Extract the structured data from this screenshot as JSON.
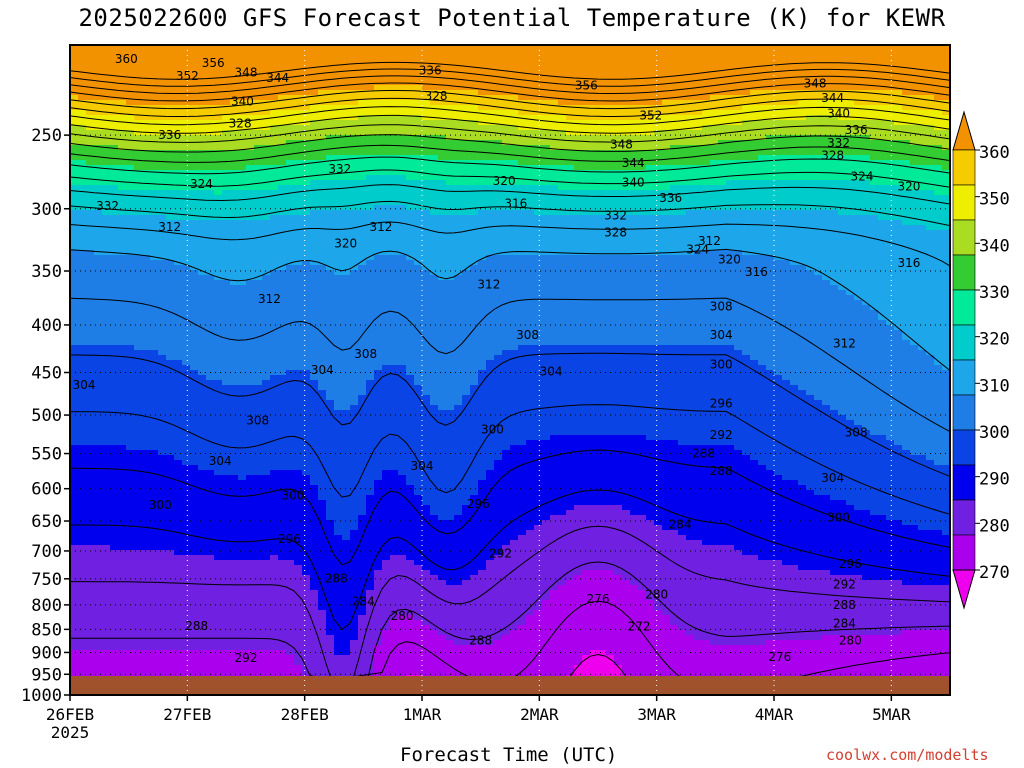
{
  "chart_data": {
    "type": "heatmap",
    "title": "2025022600 GFS Forecast Potential Temperature (K) for KEWR",
    "xlabel": "Forecast Time (UTC)",
    "ylabel": "",
    "credit": "coolwx.com/modelts",
    "x_ticks": [
      "26FEB",
      "27FEB",
      "28FEB",
      "1MAR",
      "2MAR",
      "3MAR",
      "4MAR",
      "5MAR"
    ],
    "x_year": "2025",
    "xlim_days": [
      0,
      7.5
    ],
    "y_ticks": [
      250,
      300,
      350,
      400,
      450,
      500,
      550,
      600,
      650,
      700,
      750,
      800,
      850,
      900,
      950,
      1000
    ],
    "ylim": [
      200,
      1000
    ],
    "y_scale": "log",
    "grid": true,
    "colorbar": {
      "values": [
        270,
        280,
        290,
        300,
        310,
        320,
        330,
        340,
        350,
        360
      ],
      "colors": [
        "#ee00ee",
        "#aa00ee",
        "#7020e0",
        "#0000ee",
        "#0a44e4",
        "#1e7ee6",
        "#1ea6ea",
        "#00cccc",
        "#00ea99",
        "#33cc33",
        "#aadd22",
        "#eeee00",
        "#f5cc00",
        "#f39200"
      ],
      "placement": "right"
    },
    "surface_color": "#a0522d",
    "contour_interval_k": 4,
    "contour_labels": [
      {
        "v": 360,
        "d": 0.48,
        "p": 207
      },
      {
        "v": 356,
        "d": 1.22,
        "p": 209
      },
      {
        "v": 352,
        "d": 1.0,
        "p": 216
      },
      {
        "v": 348,
        "d": 1.5,
        "p": 214
      },
      {
        "v": 344,
        "d": 1.77,
        "p": 217
      },
      {
        "v": 340,
        "d": 1.47,
        "p": 230
      },
      {
        "v": 336,
        "d": 0.85,
        "p": 250
      },
      {
        "v": 328,
        "d": 1.45,
        "p": 243
      },
      {
        "v": 332,
        "d": 2.3,
        "p": 272
      },
      {
        "v": 324,
        "d": 1.12,
        "p": 282
      },
      {
        "v": 332,
        "d": 0.32,
        "p": 298
      },
      {
        "v": 312,
        "d": 0.85,
        "p": 314
      },
      {
        "v": 320,
        "d": 2.35,
        "p": 327
      },
      {
        "v": 312,
        "d": 2.65,
        "p": 314
      },
      {
        "v": 312,
        "d": 1.7,
        "p": 375
      },
      {
        "v": 304,
        "d": 0.12,
        "p": 464
      },
      {
        "v": 304,
        "d": 2.15,
        "p": 447
      },
      {
        "v": 308,
        "d": 2.52,
        "p": 430
      },
      {
        "v": 308,
        "d": 1.6,
        "p": 507
      },
      {
        "v": 304,
        "d": 1.28,
        "p": 560
      },
      {
        "v": 300,
        "d": 0.77,
        "p": 625
      },
      {
        "v": 300,
        "d": 1.9,
        "p": 610
      },
      {
        "v": 304,
        "d": 3.0,
        "p": 567
      },
      {
        "v": 296,
        "d": 1.87,
        "p": 680
      },
      {
        "v": 288,
        "d": 2.27,
        "p": 749
      },
      {
        "v": 284,
        "d": 2.5,
        "p": 793
      },
      {
        "v": 280,
        "d": 2.83,
        "p": 822
      },
      {
        "v": 288,
        "d": 1.08,
        "p": 843
      },
      {
        "v": 292,
        "d": 1.5,
        "p": 912
      },
      {
        "v": 288,
        "d": 3.5,
        "p": 874
      },
      {
        "v": 336,
        "d": 3.07,
        "p": 213
      },
      {
        "v": 328,
        "d": 3.12,
        "p": 227
      },
      {
        "v": 320,
        "d": 3.7,
        "p": 280
      },
      {
        "v": 316,
        "d": 3.8,
        "p": 296
      },
      {
        "v": 312,
        "d": 3.57,
        "p": 362
      },
      {
        "v": 308,
        "d": 3.9,
        "p": 410
      },
      {
        "v": 304,
        "d": 4.1,
        "p": 449
      },
      {
        "v": 300,
        "d": 3.6,
        "p": 518
      },
      {
        "v": 296,
        "d": 3.48,
        "p": 623
      },
      {
        "v": 292,
        "d": 3.67,
        "p": 704
      },
      {
        "v": 276,
        "d": 4.5,
        "p": 788
      },
      {
        "v": 280,
        "d": 5.0,
        "p": 780
      },
      {
        "v": 272,
        "d": 4.85,
        "p": 844
      },
      {
        "v": 284,
        "d": 5.2,
        "p": 656
      },
      {
        "v": 288,
        "d": 5.4,
        "p": 550
      },
      {
        "v": 356,
        "d": 4.4,
        "p": 221
      },
      {
        "v": 352,
        "d": 4.95,
        "p": 238
      },
      {
        "v": 348,
        "d": 4.7,
        "p": 256
      },
      {
        "v": 344,
        "d": 4.8,
        "p": 268
      },
      {
        "v": 340,
        "d": 4.8,
        "p": 281
      },
      {
        "v": 336,
        "d": 5.12,
        "p": 292
      },
      {
        "v": 332,
        "d": 4.65,
        "p": 305
      },
      {
        "v": 328,
        "d": 4.65,
        "p": 318
      },
      {
        "v": 324,
        "d": 5.35,
        "p": 332
      },
      {
        "v": 320,
        "d": 5.62,
        "p": 340
      },
      {
        "v": 316,
        "d": 5.85,
        "p": 351
      },
      {
        "v": 312,
        "d": 5.45,
        "p": 325
      },
      {
        "v": 308,
        "d": 5.55,
        "p": 382
      },
      {
        "v": 304,
        "d": 5.55,
        "p": 410
      },
      {
        "v": 300,
        "d": 5.55,
        "p": 441
      },
      {
        "v": 296,
        "d": 5.55,
        "p": 486
      },
      {
        "v": 292,
        "d": 5.55,
        "p": 525
      },
      {
        "v": 288,
        "d": 5.55,
        "p": 574
      },
      {
        "v": 348,
        "d": 6.35,
        "p": 220
      },
      {
        "v": 344,
        "d": 6.5,
        "p": 228
      },
      {
        "v": 340,
        "d": 6.55,
        "p": 237
      },
      {
        "v": 336,
        "d": 6.7,
        "p": 247
      },
      {
        "v": 332,
        "d": 6.55,
        "p": 255
      },
      {
        "v": 328,
        "d": 6.5,
        "p": 263
      },
      {
        "v": 324,
        "d": 6.75,
        "p": 277
      },
      {
        "v": 320,
        "d": 7.15,
        "p": 284
      },
      {
        "v": 316,
        "d": 7.15,
        "p": 343
      },
      {
        "v": 312,
        "d": 6.6,
        "p": 419
      },
      {
        "v": 308,
        "d": 6.7,
        "p": 522
      },
      {
        "v": 304,
        "d": 6.5,
        "p": 584
      },
      {
        "v": 300,
        "d": 6.55,
        "p": 644
      },
      {
        "v": 296,
        "d": 6.65,
        "p": 723
      },
      {
        "v": 292,
        "d": 6.6,
        "p": 761
      },
      {
        "v": 288,
        "d": 6.6,
        "p": 800
      },
      {
        "v": 284,
        "d": 6.6,
        "p": 838
      },
      {
        "v": 280,
        "d": 6.65,
        "p": 874
      },
      {
        "v": 276,
        "d": 6.05,
        "p": 910
      }
    ]
  }
}
